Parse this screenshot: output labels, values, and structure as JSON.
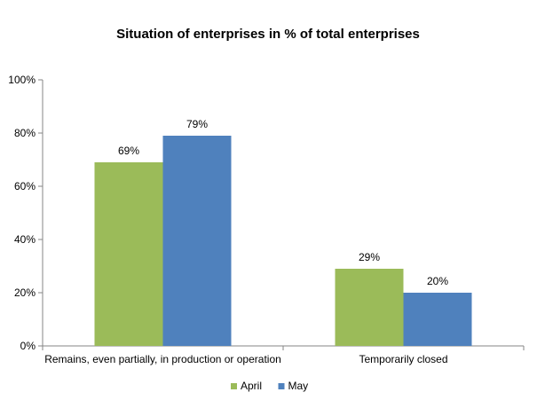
{
  "chart_data": {
    "type": "bar",
    "title": "Situation of enterprises in % of total enterprises",
    "xlabel": "",
    "ylabel": "",
    "categories": [
      "Remains, even partially, in production or operation",
      "Temporarily closed"
    ],
    "series": [
      {
        "name": "April",
        "values": [
          69,
          29
        ],
        "labels": [
          "69%",
          "29%"
        ],
        "color": "#9BBB59"
      },
      {
        "name": "May",
        "values": [
          79,
          20
        ],
        "labels": [
          "79%",
          "20%"
        ],
        "color": "#4F81BD"
      }
    ],
    "ylim": [
      0,
      100
    ],
    "y_ticks": [
      0,
      20,
      40,
      60,
      80,
      100
    ],
    "y_tick_labels": [
      "0%",
      "20%",
      "40%",
      "60%",
      "80%",
      "100%"
    ],
    "grid": false,
    "legend_position": "bottom",
    "axis_color": "#868686"
  }
}
